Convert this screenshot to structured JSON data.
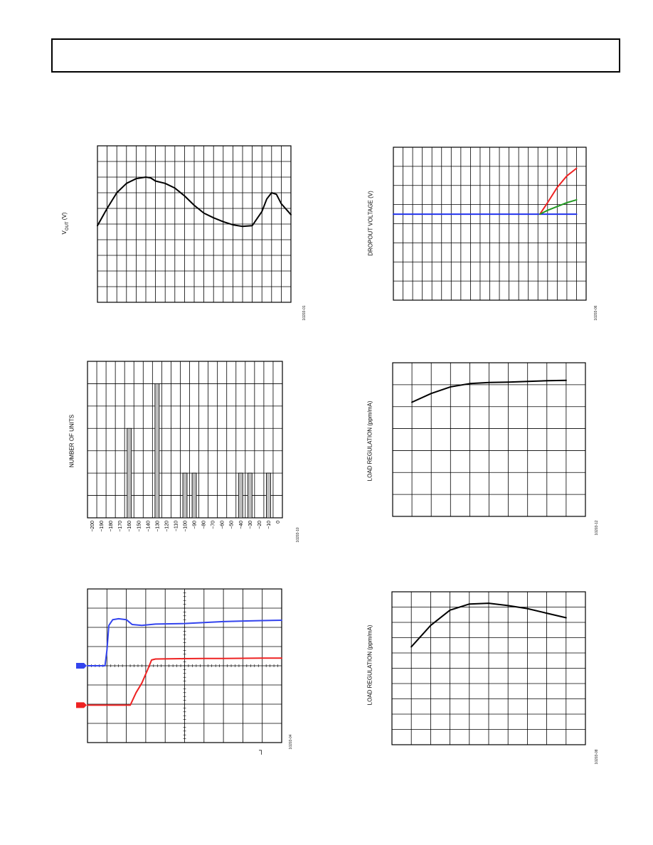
{
  "header": {
    "text": ""
  },
  "charts": {
    "c1": {
      "ylabel_main": "V",
      "ylabel_sub": "OUT",
      "ylabel_unit": " (V)",
      "fig_id": "10203-01"
    },
    "c2": {
      "ylabel": "DROPOUT VOLTAGE (V)",
      "fig_id": "10203-06"
    },
    "c3": {
      "ylabel": "NUMBER OF UNITS",
      "fig_id": "10203-10"
    },
    "c4": {
      "ylabel": "LOAD REGULATION (ppm/mA)",
      "fig_id": "10203-12"
    },
    "c5": {
      "fig_id": "10203-04",
      "trigger_symbol": "┐"
    },
    "c6": {
      "ylabel": "LOAD REGULATION (ppm/mA)",
      "fig_id": "10203-08"
    }
  },
  "chart_data": [
    {
      "id": "c1",
      "type": "line",
      "grid": true,
      "title": "",
      "xlabel": "",
      "ylabel": "VOUT (V)",
      "xlim": [
        0,
        20
      ],
      "ylim": [
        0,
        10
      ],
      "series": [
        {
          "color": "#000000",
          "x": [
            0,
            1,
            2,
            3,
            4,
            5,
            5.5,
            6,
            7,
            8,
            9,
            10,
            11,
            12,
            13,
            14,
            15,
            16,
            17,
            17.5,
            18,
            18.5,
            19,
            20
          ],
          "y": [
            4.9,
            6.0,
            7.0,
            7.6,
            7.9,
            8.0,
            7.95,
            7.75,
            7.6,
            7.3,
            6.8,
            6.2,
            5.7,
            5.4,
            5.15,
            4.95,
            4.85,
            4.9,
            5.8,
            6.6,
            7.0,
            6.9,
            6.3,
            5.6
          ]
        }
      ]
    },
    {
      "id": "c2",
      "type": "line",
      "grid": true,
      "title": "",
      "xlabel": "",
      "ylabel": "DROPOUT VOLTAGE (V)",
      "xlim": [
        0,
        20
      ],
      "ylim": [
        0,
        8
      ],
      "series": [
        {
          "color": "#2233ee",
          "x": [
            0,
            15.2,
            19
          ],
          "y": [
            4.5,
            4.5,
            4.5
          ]
        },
        {
          "color": "#ee2222",
          "x": [
            15.2,
            16,
            17,
            18,
            19
          ],
          "y": [
            4.5,
            5.1,
            5.9,
            6.5,
            6.9
          ]
        },
        {
          "color": "#229922",
          "x": [
            15.2,
            16,
            17,
            18,
            19
          ],
          "y": [
            4.5,
            4.7,
            4.9,
            5.1,
            5.25
          ]
        }
      ]
    },
    {
      "id": "c3",
      "type": "bar",
      "grid": true,
      "title": "",
      "xlabel": "",
      "ylabel": "NUMBER OF UNITS",
      "categories": [
        "-200",
        "-190",
        "-180",
        "-170",
        "-160",
        "-150",
        "-140",
        "-130",
        "-120",
        "-110",
        "-100",
        "-90",
        "-80",
        "-70",
        "-60",
        "-50",
        "-40",
        "-30",
        "-20",
        "-10",
        "0"
      ],
      "values": [
        0,
        0,
        0,
        0,
        4,
        0,
        0,
        6,
        0,
        0,
        2,
        2,
        0,
        0,
        0,
        0,
        2,
        2,
        0,
        2,
        0
      ],
      "ylim": [
        0,
        7
      ]
    },
    {
      "id": "c4",
      "type": "line",
      "grid": true,
      "title": "",
      "xlabel": "",
      "ylabel": "LOAD REGULATION (ppm/mA)",
      "xlim": [
        0,
        10
      ],
      "ylim": [
        0,
        7
      ],
      "series": [
        {
          "color": "#000000",
          "x": [
            1,
            2,
            3,
            4,
            5,
            6,
            7,
            8,
            9
          ],
          "y": [
            5.2,
            5.6,
            5.9,
            6.05,
            6.1,
            6.12,
            6.15,
            6.18,
            6.2
          ]
        }
      ]
    },
    {
      "id": "c5",
      "type": "line",
      "grid": true,
      "title": "",
      "xlabel": "",
      "ylabel": "",
      "xlim": [
        0,
        10
      ],
      "ylim": [
        0,
        8
      ],
      "series": [
        {
          "color": "#3344ee",
          "x": [
            0,
            0.9,
            1.0,
            1.1,
            1.3,
            1.6,
            2.0,
            2.3,
            2.8,
            3.5,
            5,
            6,
            7,
            8,
            9,
            10
          ],
          "y": [
            4.0,
            4.0,
            4.8,
            6.1,
            6.4,
            6.45,
            6.4,
            6.15,
            6.1,
            6.17,
            6.2,
            6.25,
            6.3,
            6.33,
            6.35,
            6.37
          ]
        },
        {
          "color": "#ee2222",
          "x": [
            0,
            2.2,
            2.5,
            2.8,
            3.1,
            3.3,
            3.5,
            5,
            6,
            7,
            8,
            9,
            10
          ],
          "y": [
            1.95,
            1.95,
            2.6,
            3.1,
            3.8,
            4.3,
            4.35,
            4.37,
            4.38,
            4.38,
            4.39,
            4.4,
            4.4
          ]
        }
      ]
    },
    {
      "id": "c6",
      "type": "line",
      "grid": true,
      "title": "",
      "xlabel": "",
      "ylabel": "LOAD REGULATION (ppm/mA)",
      "xlim": [
        0,
        10
      ],
      "ylim": [
        0,
        10
      ],
      "series": [
        {
          "color": "#000000",
          "x": [
            1,
            2,
            3,
            4,
            5,
            6,
            7,
            8,
            9
          ],
          "y": [
            6.4,
            7.8,
            8.8,
            9.2,
            9.25,
            9.1,
            8.9,
            8.6,
            8.3
          ]
        }
      ]
    }
  ]
}
